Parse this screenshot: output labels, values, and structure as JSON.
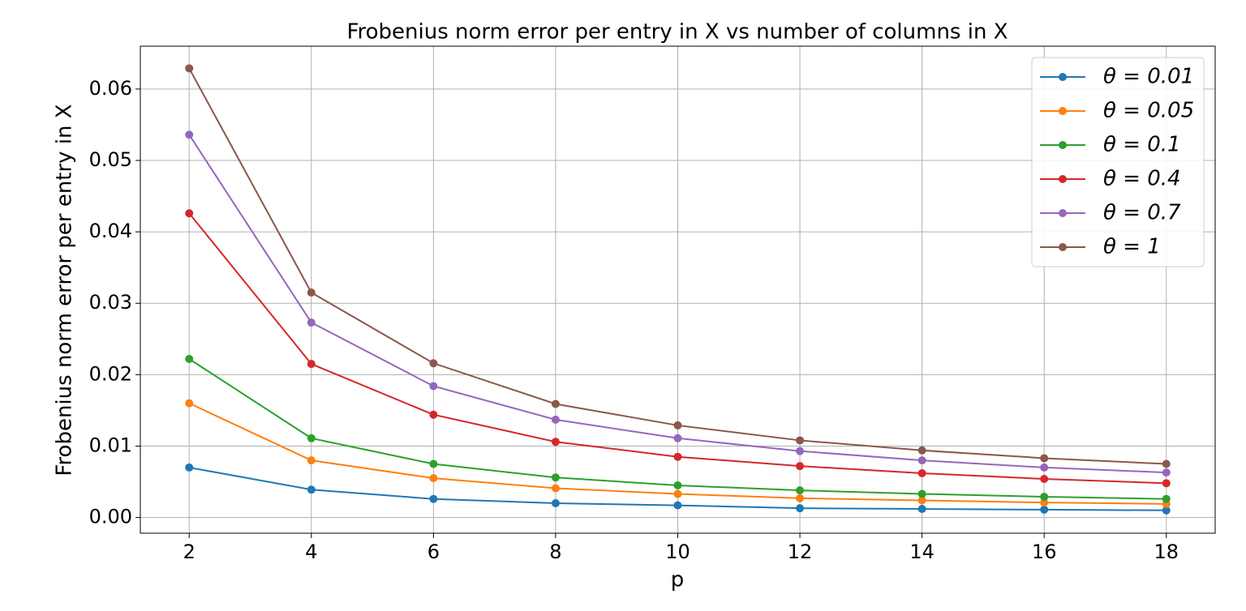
{
  "chart_data": {
    "type": "line",
    "title": "Frobenius norm error per entry in X vs number of columns in X",
    "x_label": "p",
    "y_label": "Frobenius norm error per entry in X",
    "x": [
      2,
      4,
      6,
      8,
      10,
      12,
      14,
      16,
      18
    ],
    "xlim": [
      1.2,
      18.8
    ],
    "xticks": [
      2,
      4,
      6,
      8,
      10,
      12,
      14,
      16,
      18
    ],
    "ylim": [
      -0.0022,
      0.066
    ],
    "yticks": [
      {
        "value": 0,
        "label": "0.00"
      },
      0.01,
      0.02,
      0.03,
      0.04,
      0.05,
      0.06
    ],
    "grid": true,
    "legend": "upper right",
    "series": [
      {
        "name": "θ = 0.01",
        "color": "#1f77b4",
        "values": [
          0.007,
          0.0039,
          0.0026,
          0.002,
          0.0017,
          0.0013,
          0.0012,
          0.0011,
          0.001
        ]
      },
      {
        "name": "θ = 0.05",
        "color": "#ff7f0e",
        "values": [
          0.016,
          0.008,
          0.0055,
          0.0041,
          0.0033,
          0.0027,
          0.0024,
          0.0021,
          0.0019
        ]
      },
      {
        "name": "θ = 0.1",
        "color": "#2ca02c",
        "values": [
          0.0222,
          0.0111,
          0.0075,
          0.0056,
          0.0045,
          0.0038,
          0.0033,
          0.0029,
          0.0026
        ]
      },
      {
        "name": "θ = 0.4",
        "color": "#d62728",
        "values": [
          0.0426,
          0.0215,
          0.0144,
          0.0106,
          0.0085,
          0.0072,
          0.0062,
          0.0054,
          0.0048
        ]
      },
      {
        "name": "θ = 0.7",
        "color": "#9467bd",
        "values": [
          0.0536,
          0.0273,
          0.0184,
          0.0137,
          0.0111,
          0.0093,
          0.008,
          0.007,
          0.0063
        ]
      },
      {
        "name": "θ = 1",
        "color": "#8c564b",
        "values": [
          0.0629,
          0.0315,
          0.0216,
          0.0159,
          0.0129,
          0.0108,
          0.0094,
          0.0083,
          0.0075
        ]
      }
    ]
  }
}
